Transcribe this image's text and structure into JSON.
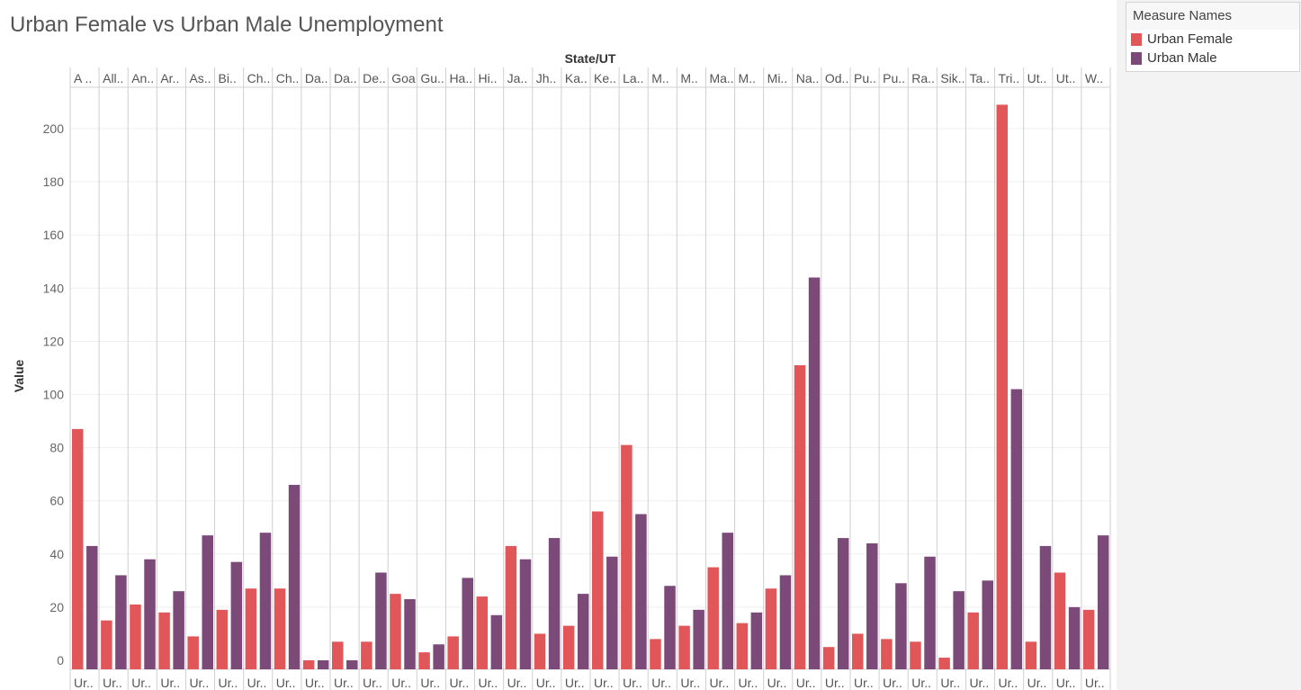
{
  "title": "Urban Female vs Urban Male Unemployment",
  "legend": {
    "title": "Measure Names",
    "items": [
      {
        "label": "Urban Female",
        "color": "#e15759"
      },
      {
        "label": "Urban Male",
        "color": "#7b4a78"
      }
    ]
  },
  "chart_data": {
    "type": "bar",
    "title": "Urban Female vs Urban Male Unemployment",
    "xlabel": "State/UT",
    "ylabel": "Value",
    "ylim": [
      0,
      215
    ],
    "yticks": [
      0,
      20,
      40,
      60,
      80,
      100,
      120,
      140,
      160,
      180,
      200
    ],
    "grid": true,
    "legend_position": "top-right",
    "categories": [
      "A ..",
      "All..",
      "An..",
      "Ar..",
      "As..",
      "Bi..",
      "Ch..",
      "Ch..",
      "Da..",
      "Da..",
      "De..",
      "Goa",
      "Gu..",
      "Ha..",
      "Hi..",
      "Ja..",
      "Jh..",
      "Ka..",
      "Ke..",
      "La..",
      "M..",
      "M..",
      "Ma..",
      "M..",
      "Mi..",
      "Na..",
      "Od..",
      "Pu..",
      "Pu..",
      "Ra..",
      "Sik..",
      "Ta..",
      "Tri..",
      "Ut..",
      "Ut..",
      "W.."
    ],
    "bottom_labels": [
      "Ur..",
      "Ur..",
      "Ur..",
      "Ur..",
      "Ur..",
      "Ur..",
      "Ur..",
      "Ur..",
      "Ur..",
      "Ur..",
      "Ur..",
      "Ur..",
      "Ur..",
      "Ur..",
      "Ur..",
      "Ur..",
      "Ur..",
      "Ur..",
      "Ur..",
      "Ur..",
      "Ur..",
      "Ur..",
      "Ur..",
      "Ur..",
      "Ur..",
      "Ur..",
      "Ur..",
      "Ur..",
      "Ur..",
      "Ur..",
      "Ur..",
      "Ur..",
      "Ur..",
      "Ur..",
      "Ur..",
      "Ur.."
    ],
    "series": [
      {
        "name": "Urban Female",
        "color": "#e15759",
        "values": [
          87,
          15,
          21,
          18,
          9,
          19,
          27,
          27,
          0,
          7,
          7,
          25,
          3,
          9,
          24,
          43,
          10,
          13,
          56,
          81,
          8,
          13,
          35,
          14,
          27,
          111,
          5,
          10,
          8,
          7,
          1,
          18,
          209,
          7,
          33,
          19
        ]
      },
      {
        "name": "Urban Male",
        "color": "#7b4a78",
        "values": [
          43,
          32,
          38,
          26,
          47,
          37,
          48,
          66,
          0,
          0,
          33,
          23,
          6,
          31,
          17,
          38,
          46,
          25,
          39,
          55,
          28,
          19,
          48,
          18,
          32,
          144,
          46,
          44,
          29,
          39,
          26,
          30,
          102,
          43,
          20,
          47
        ]
      }
    ]
  }
}
